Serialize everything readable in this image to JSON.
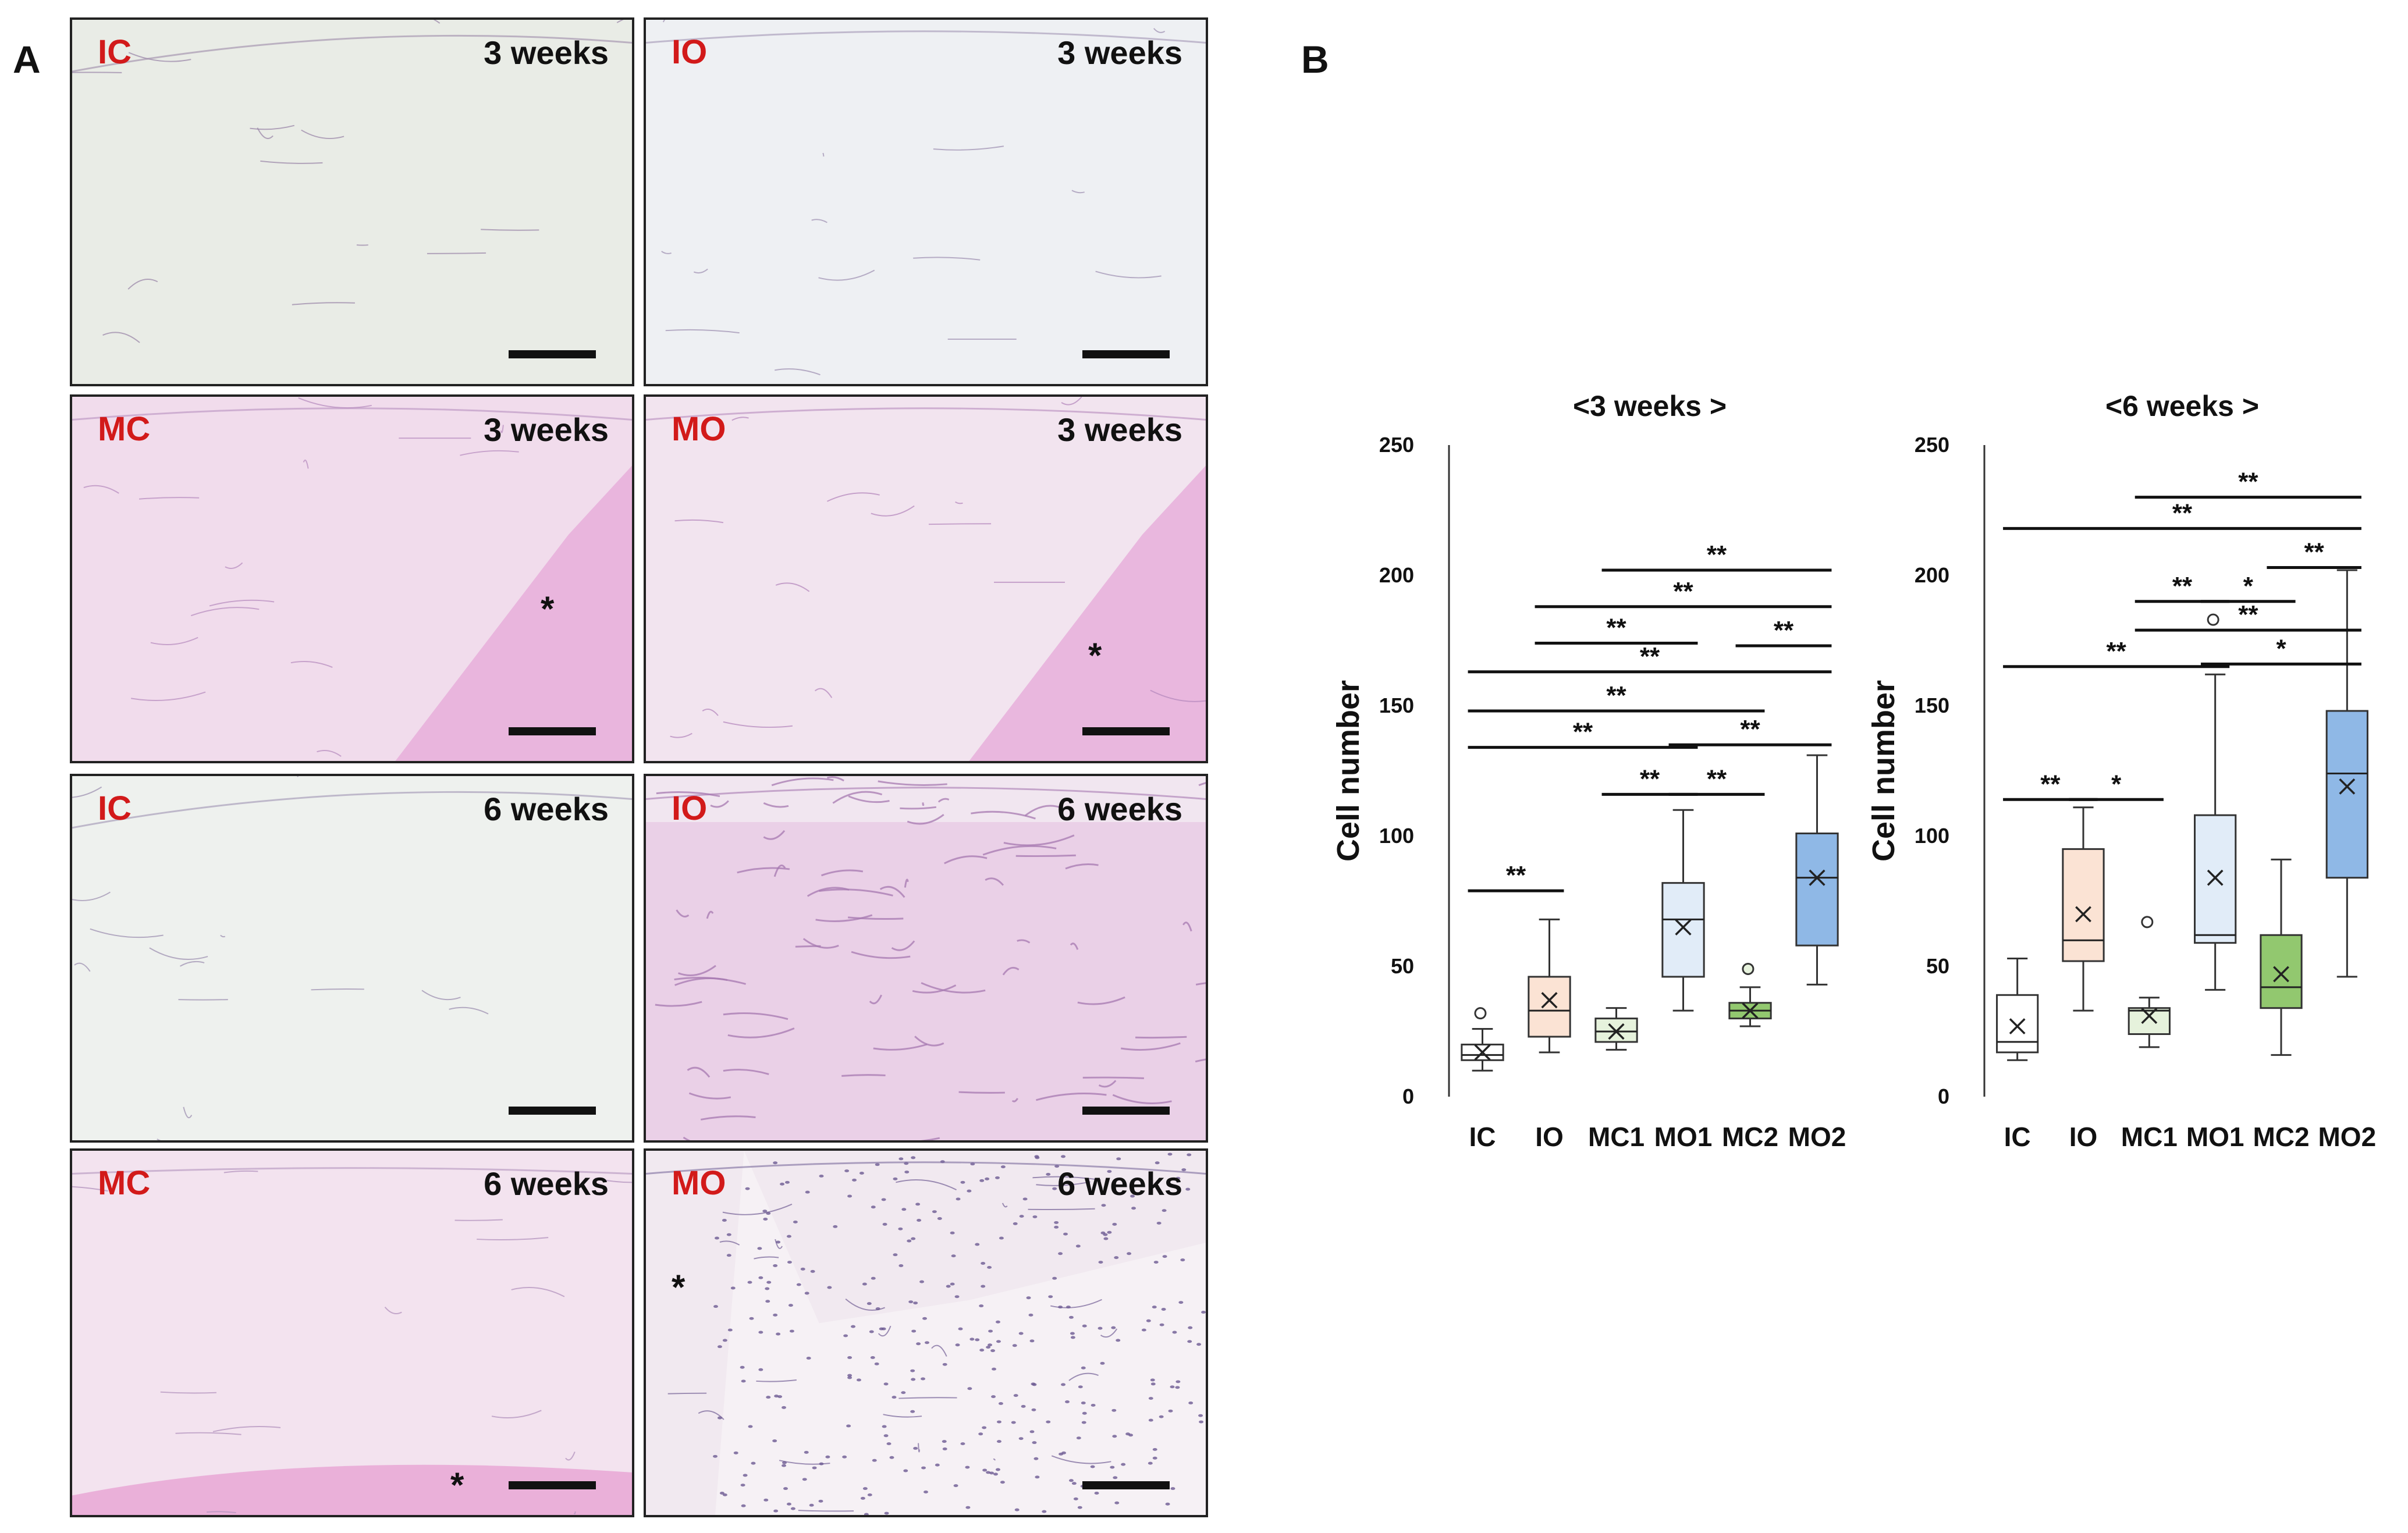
{
  "panel_a": {
    "letter": "A",
    "images": [
      {
        "group": "IC",
        "time": "3 weeks",
        "asterisk": ""
      },
      {
        "group": "IO",
        "time": "3 weeks",
        "asterisk": ""
      },
      {
        "group": "MC",
        "time": "3 weeks",
        "asterisk": "*"
      },
      {
        "group": "MO",
        "time": "3 weeks",
        "asterisk": "*"
      },
      {
        "group": "IC",
        "time": "6 weeks",
        "asterisk": ""
      },
      {
        "group": "IO",
        "time": "6 weeks",
        "asterisk": ""
      },
      {
        "group": "MC",
        "time": "6 weeks",
        "asterisk": "*"
      },
      {
        "group": "MO",
        "time": "6 weeks",
        "asterisk": "*"
      }
    ]
  },
  "panel_b": {
    "letter": "B",
    "ylabel": "Cell number"
  },
  "colors": {
    "group_label": "#d21a1a",
    "IC": "#ffffff",
    "IO": "#fbe3d4",
    "MC1": "#e6f2dc",
    "MO1": "#e1ecf8",
    "MC2": "#92c86f",
    "MO2": "#8fb8e6"
  },
  "chart_data": [
    {
      "type": "box",
      "title": "<3 weeks >",
      "ylabel": "Cell number",
      "ylim": [
        0,
        250
      ],
      "yticks": [
        0,
        50,
        100,
        150,
        200,
        250
      ],
      "categories": [
        "IC",
        "IO",
        "MC1",
        "MO1",
        "MC2",
        "MO2"
      ],
      "boxes": [
        {
          "name": "IC",
          "min": 10,
          "q1": 14,
          "median": 16,
          "q3": 20,
          "max": 26,
          "mean": 17,
          "outliers": [
            32
          ],
          "fill": "#ffffff"
        },
        {
          "name": "IO",
          "min": 17,
          "q1": 23,
          "median": 33,
          "q3": 46,
          "max": 68,
          "mean": 37,
          "outliers": [],
          "fill": "#fbe3d4"
        },
        {
          "name": "MC1",
          "min": 18,
          "q1": 21,
          "median": 25,
          "q3": 30,
          "max": 34,
          "mean": 25,
          "outliers": [],
          "fill": "#e6f2dc"
        },
        {
          "name": "MO1",
          "min": 33,
          "q1": 46,
          "median": 68,
          "q3": 82,
          "max": 110,
          "mean": 65,
          "outliers": [],
          "fill": "#e1ecf8"
        },
        {
          "name": "MC2",
          "min": 27,
          "q1": 30,
          "median": 33,
          "q3": 36,
          "max": 42,
          "mean": 33,
          "outliers": [
            49
          ],
          "fill": "#92c86f"
        },
        {
          "name": "MO2",
          "min": 43,
          "q1": 58,
          "median": 84,
          "q3": 101,
          "max": 131,
          "mean": 84,
          "outliers": [],
          "fill": "#8fb8e6"
        }
      ],
      "significance": [
        {
          "from": 0,
          "to": 1,
          "y": 79,
          "label": "**"
        },
        {
          "from": 2,
          "to": 3,
          "y": 116,
          "label": "**"
        },
        {
          "from": 3,
          "to": 4,
          "y": 116,
          "label": "**"
        },
        {
          "from": 0,
          "to": 3,
          "y": 134,
          "label": "**"
        },
        {
          "from": 3,
          "to": 5,
          "y": 135,
          "label": "**"
        },
        {
          "from": 0,
          "to": 4,
          "y": 148,
          "label": "**"
        },
        {
          "from": 0,
          "to": 5,
          "y": 163,
          "label": "**"
        },
        {
          "from": 1,
          "to": 3,
          "y": 174,
          "label": "**"
        },
        {
          "from": 4,
          "to": 5,
          "y": 173,
          "label": "**"
        },
        {
          "from": 1,
          "to": 5,
          "y": 188,
          "label": "**"
        },
        {
          "from": 2,
          "to": 5,
          "y": 202,
          "label": "**"
        }
      ]
    },
    {
      "type": "box",
      "title": "<6 weeks >",
      "ylabel": "Cell number",
      "ylim": [
        0,
        250
      ],
      "yticks": [
        0,
        50,
        100,
        150,
        200,
        250
      ],
      "categories": [
        "IC",
        "IO",
        "MC1",
        "MO1",
        "MC2",
        "MO2"
      ],
      "boxes": [
        {
          "name": "IC",
          "min": 14,
          "q1": 17,
          "median": 21,
          "q3": 39,
          "max": 53,
          "mean": 27,
          "outliers": [],
          "fill": "#ffffff"
        },
        {
          "name": "IO",
          "min": 33,
          "q1": 52,
          "median": 60,
          "q3": 95,
          "max": 111,
          "mean": 70,
          "outliers": [],
          "fill": "#fbe3d4"
        },
        {
          "name": "MC1",
          "min": 19,
          "q1": 24,
          "median": 33,
          "q3": 34,
          "max": 38,
          "mean": 31,
          "outliers": [
            67
          ],
          "fill": "#e6f2dc"
        },
        {
          "name": "MO1",
          "min": 41,
          "q1": 59,
          "median": 62,
          "q3": 108,
          "max": 162,
          "mean": 84,
          "outliers": [
            183
          ],
          "fill": "#e1ecf8"
        },
        {
          "name": "MC2",
          "min": 16,
          "q1": 34,
          "median": 42,
          "q3": 62,
          "max": 91,
          "mean": 47,
          "outliers": [],
          "fill": "#92c86f"
        },
        {
          "name": "MO2",
          "min": 46,
          "q1": 84,
          "median": 124,
          "q3": 148,
          "max": 202,
          "mean": 119,
          "outliers": [],
          "fill": "#8fb8e6"
        }
      ],
      "significance": [
        {
          "from": 0,
          "to": 1,
          "y": 114,
          "label": "**"
        },
        {
          "from": 1,
          "to": 2,
          "y": 114,
          "label": "*"
        },
        {
          "from": 0,
          "to": 3,
          "y": 165,
          "label": "**"
        },
        {
          "from": 3,
          "to": 5,
          "y": 166,
          "label": "*"
        },
        {
          "from": 2,
          "to": 5,
          "y": 179,
          "label": "**"
        },
        {
          "from": 2,
          "to": 3,
          "y": 190,
          "label": "**"
        },
        {
          "from": 3,
          "to": 4,
          "y": 190,
          "label": "*"
        },
        {
          "from": 4,
          "to": 5,
          "y": 203,
          "label": "**"
        },
        {
          "from": 0,
          "to": 5,
          "y": 218,
          "label": "**"
        },
        {
          "from": 2,
          "to": 5,
          "y": 230,
          "label": "**"
        }
      ]
    }
  ]
}
